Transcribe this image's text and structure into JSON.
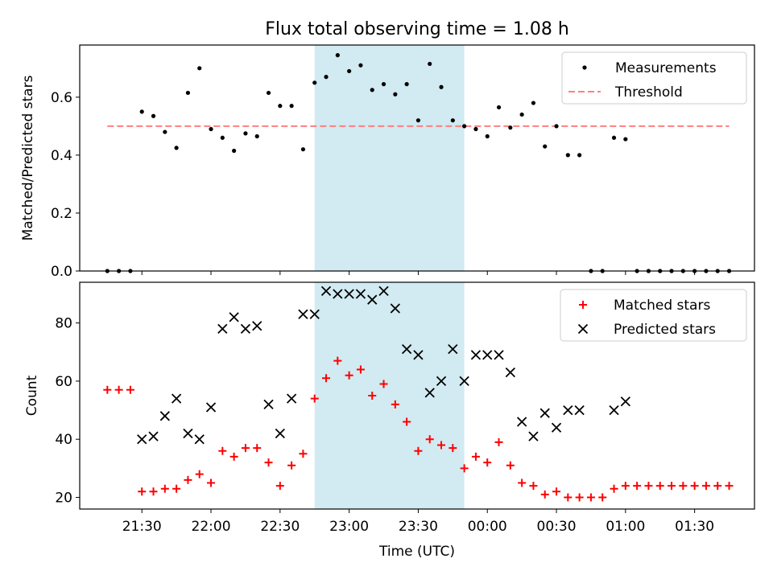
{
  "title": "Flux total observing time = 1.08 h",
  "chart_data": [
    {
      "type": "scatter",
      "ylabel": "Matched/Predicted stars",
      "ylim": [
        0,
        0.78
      ],
      "yticks": [
        "0.0",
        "0.2",
        "0.4",
        "0.6"
      ],
      "ytick_values": [
        0,
        0.2,
        0.4,
        0.6
      ],
      "xlim": [
        "21:03",
        "01:56"
      ],
      "shaded_interval": [
        "22:45",
        "23:50"
      ],
      "shade_color": "#add8e6",
      "legend_position": "top-right",
      "legend": [
        {
          "key": "measurements",
          "label": "Measurements",
          "marker": "dot",
          "color": "#000000"
        },
        {
          "key": "threshold",
          "label": "Threshold",
          "marker": "dashed-line",
          "color": "#ff7f7f"
        }
      ],
      "threshold": {
        "y": 0.5,
        "x_start": "21:15",
        "x_end": "01:45",
        "color": "#ff7f7f",
        "style": "dashed"
      },
      "series": [
        {
          "key": "measurements",
          "color": "#000000",
          "marker": "dot",
          "points": [
            [
              "21:15",
              0.0
            ],
            [
              "21:20",
              0.0
            ],
            [
              "21:25",
              0.0
            ],
            [
              "21:30",
              0.55
            ],
            [
              "21:35",
              0.535
            ],
            [
              "21:40",
              0.48
            ],
            [
              "21:45",
              0.425
            ],
            [
              "21:50",
              0.615
            ],
            [
              "21:55",
              0.7
            ],
            [
              "22:00",
              0.49
            ],
            [
              "22:05",
              0.46
            ],
            [
              "22:10",
              0.415
            ],
            [
              "22:15",
              0.475
            ],
            [
              "22:20",
              0.465
            ],
            [
              "22:25",
              0.615
            ],
            [
              "22:30",
              0.57
            ],
            [
              "22:35",
              0.57
            ],
            [
              "22:40",
              0.42
            ],
            [
              "22:45",
              0.65
            ],
            [
              "22:50",
              0.67
            ],
            [
              "22:55",
              0.745
            ],
            [
              "23:00",
              0.69
            ],
            [
              "23:05",
              0.71
            ],
            [
              "23:10",
              0.625
            ],
            [
              "23:15",
              0.645
            ],
            [
              "23:20",
              0.61
            ],
            [
              "23:25",
              0.645
            ],
            [
              "23:30",
              0.52
            ],
            [
              "23:35",
              0.715
            ],
            [
              "23:40",
              0.635
            ],
            [
              "23:45",
              0.52
            ],
            [
              "23:50",
              0.5
            ],
            [
              "23:55",
              0.49
            ],
            [
              "00:00",
              0.465
            ],
            [
              "00:05",
              0.565
            ],
            [
              "00:10",
              0.495
            ],
            [
              "00:15",
              0.54
            ],
            [
              "00:20",
              0.58
            ],
            [
              "00:25",
              0.43
            ],
            [
              "00:30",
              0.5
            ],
            [
              "00:35",
              0.4
            ],
            [
              "00:40",
              0.4
            ],
            [
              "00:45",
              0.0
            ],
            [
              "00:50",
              0.0
            ],
            [
              "00:55",
              0.46
            ],
            [
              "01:00",
              0.455
            ],
            [
              "01:05",
              0.0
            ],
            [
              "01:10",
              0.0
            ],
            [
              "01:15",
              0.0
            ],
            [
              "01:20",
              0.0
            ],
            [
              "01:25",
              0.0
            ],
            [
              "01:30",
              0.0
            ],
            [
              "01:35",
              0.0
            ],
            [
              "01:40",
              0.0
            ],
            [
              "01:45",
              0.0
            ]
          ]
        }
      ]
    },
    {
      "type": "scatter",
      "xlabel": "Time (UTC)",
      "ylabel": "Count",
      "ylim": [
        16,
        94
      ],
      "yticks": [
        "20",
        "40",
        "60",
        "80"
      ],
      "ytick_values": [
        20,
        40,
        60,
        80
      ],
      "xlim": [
        "21:03",
        "01:56"
      ],
      "xticks": [
        "21:30",
        "22:00",
        "22:30",
        "23:00",
        "23:30",
        "00:00",
        "00:30",
        "01:00",
        "01:30"
      ],
      "shaded_interval": [
        "22:45",
        "23:50"
      ],
      "shade_color": "#add8e6",
      "legend_position": "top-right",
      "legend": [
        {
          "key": "matched",
          "label": "Matched stars",
          "marker": "plus",
          "color": "#ff0000"
        },
        {
          "key": "predicted",
          "label": "Predicted stars",
          "marker": "x",
          "color": "#000000"
        }
      ],
      "series": [
        {
          "key": "matched",
          "color": "#ff0000",
          "marker": "plus",
          "points": [
            [
              "21:15",
              57
            ],
            [
              "21:20",
              57
            ],
            [
              "21:25",
              57
            ],
            [
              "21:30",
              22
            ],
            [
              "21:35",
              22
            ],
            [
              "21:40",
              23
            ],
            [
              "21:45",
              23
            ],
            [
              "21:50",
              26
            ],
            [
              "21:55",
              28
            ],
            [
              "22:00",
              25
            ],
            [
              "22:05",
              36
            ],
            [
              "22:10",
              34
            ],
            [
              "22:15",
              37
            ],
            [
              "22:20",
              37
            ],
            [
              "22:25",
              32
            ],
            [
              "22:30",
              24
            ],
            [
              "22:35",
              31
            ],
            [
              "22:40",
              35
            ],
            [
              "22:45",
              54
            ],
            [
              "22:50",
              61
            ],
            [
              "22:55",
              67
            ],
            [
              "23:00",
              62
            ],
            [
              "23:05",
              64
            ],
            [
              "23:10",
              55
            ],
            [
              "23:15",
              59
            ],
            [
              "23:20",
              52
            ],
            [
              "23:25",
              46
            ],
            [
              "23:30",
              36
            ],
            [
              "23:35",
              40
            ],
            [
              "23:40",
              38
            ],
            [
              "23:45",
              37
            ],
            [
              "23:50",
              30
            ],
            [
              "23:55",
              34
            ],
            [
              "00:00",
              32
            ],
            [
              "00:05",
              39
            ],
            [
              "00:10",
              31
            ],
            [
              "00:15",
              25
            ],
            [
              "00:20",
              24
            ],
            [
              "00:25",
              21
            ],
            [
              "00:30",
              22
            ],
            [
              "00:35",
              20
            ],
            [
              "00:40",
              20
            ],
            [
              "00:45",
              20
            ],
            [
              "00:50",
              20
            ],
            [
              "00:55",
              23
            ],
            [
              "01:00",
              24
            ],
            [
              "01:05",
              24
            ],
            [
              "01:10",
              24
            ],
            [
              "01:15",
              24
            ],
            [
              "01:20",
              24
            ],
            [
              "01:25",
              24
            ],
            [
              "01:30",
              24
            ],
            [
              "01:35",
              24
            ],
            [
              "01:40",
              24
            ],
            [
              "01:45",
              24
            ]
          ]
        },
        {
          "key": "predicted",
          "color": "#000000",
          "marker": "x",
          "points": [
            [
              "21:30",
              40
            ],
            [
              "21:35",
              41
            ],
            [
              "21:40",
              48
            ],
            [
              "21:45",
              54
            ],
            [
              "21:50",
              42
            ],
            [
              "21:55",
              40
            ],
            [
              "22:00",
              51
            ],
            [
              "22:05",
              78
            ],
            [
              "22:10",
              82
            ],
            [
              "22:15",
              78
            ],
            [
              "22:20",
              79
            ],
            [
              "22:25",
              52
            ],
            [
              "22:30",
              42
            ],
            [
              "22:35",
              54
            ],
            [
              "22:40",
              83
            ],
            [
              "22:45",
              83
            ],
            [
              "22:50",
              91
            ],
            [
              "22:55",
              90
            ],
            [
              "23:00",
              90
            ],
            [
              "23:05",
              90
            ],
            [
              "23:10",
              88
            ],
            [
              "23:15",
              91
            ],
            [
              "23:20",
              85
            ],
            [
              "23:25",
              71
            ],
            [
              "23:30",
              69
            ],
            [
              "23:35",
              56
            ],
            [
              "23:40",
              60
            ],
            [
              "23:45",
              71
            ],
            [
              "23:50",
              60
            ],
            [
              "23:55",
              69
            ],
            [
              "00:00",
              69
            ],
            [
              "00:05",
              69
            ],
            [
              "00:10",
              63
            ],
            [
              "00:15",
              46
            ],
            [
              "00:20",
              41
            ],
            [
              "00:25",
              49
            ],
            [
              "00:30",
              44
            ],
            [
              "00:35",
              50
            ],
            [
              "00:40",
              50
            ],
            [
              "00:55",
              50
            ],
            [
              "01:00",
              53
            ]
          ]
        }
      ]
    }
  ]
}
